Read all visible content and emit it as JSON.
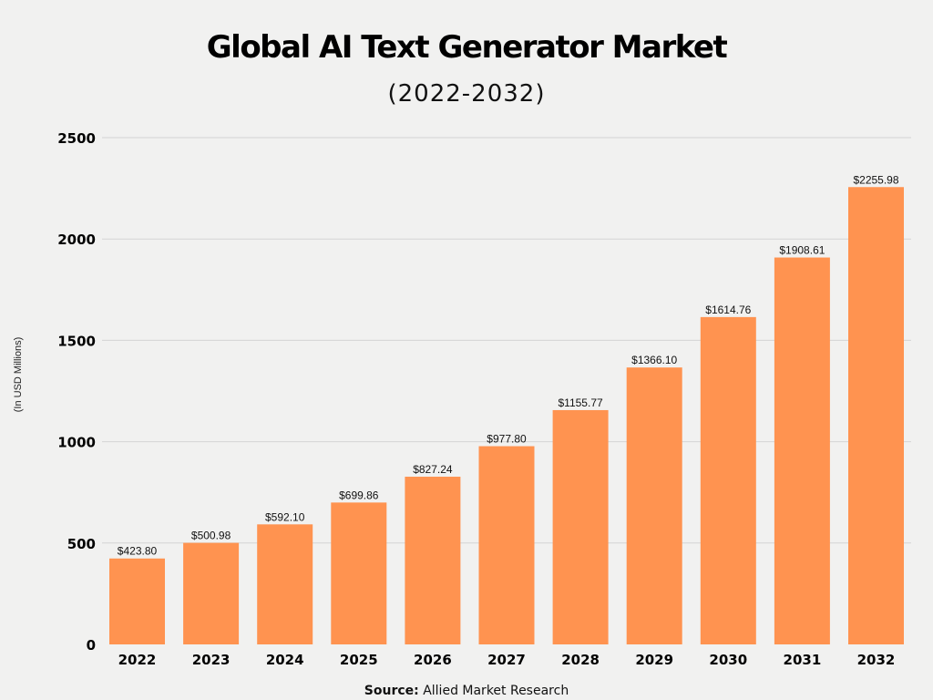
{
  "chart_data": {
    "type": "bar",
    "title": "Global AI Text Generator Market",
    "subtitle": "(2022-2032)",
    "xlabel": "",
    "ylabel": "(In USD Millions)",
    "categories": [
      "2022",
      "2023",
      "2024",
      "2025",
      "2026",
      "2027",
      "2028",
      "2029",
      "2030",
      "2031",
      "2032"
    ],
    "values": [
      423.8,
      500.98,
      592.1,
      699.86,
      827.24,
      977.8,
      1155.77,
      1366.1,
      1614.76,
      1908.61,
      2255.98
    ],
    "data_labels": [
      "$423.80",
      "$500.98",
      "$592.10",
      "$699.86",
      "$827.24",
      "$977.80",
      "$1155.77",
      "$1366.10",
      "$1614.76",
      "$1908.61",
      "$2255.98"
    ],
    "ylim": [
      0,
      2500
    ],
    "yticks": [
      0,
      500,
      1000,
      1500,
      2000,
      2500
    ],
    "grid": true,
    "bar_color": "#ff9350",
    "source_label": "Source:",
    "source_text": "Allied Market Research"
  }
}
